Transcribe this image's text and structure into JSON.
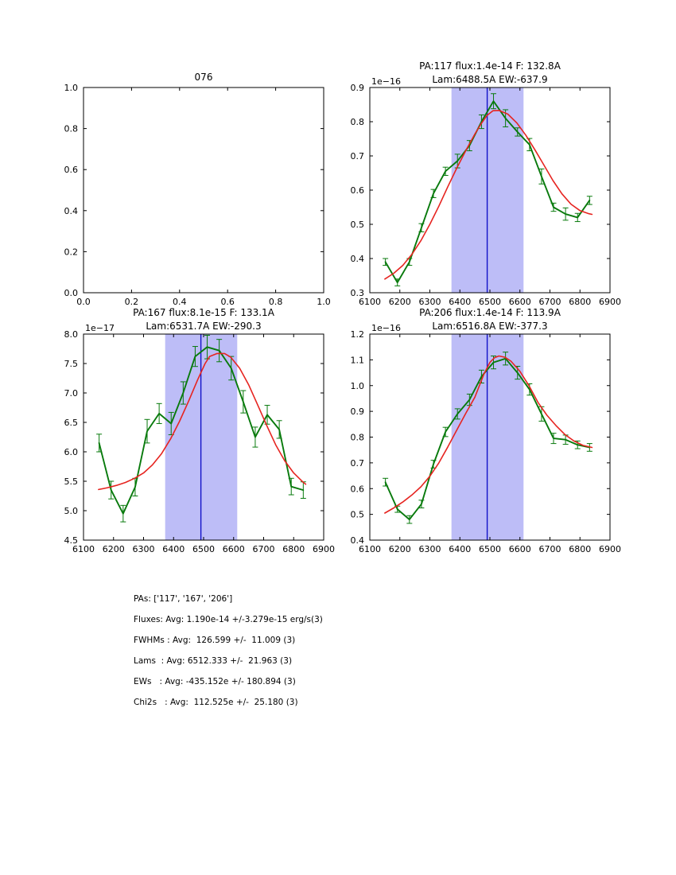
{
  "colors": {
    "data_series": "#087a0c",
    "fit_curve": "#e62420",
    "center_line": "#1111c9",
    "band_fill": "#bdbdf7",
    "axes": "#000000",
    "background": "#ffffff"
  },
  "chart_data": [
    {
      "id": "subplot-empty-076",
      "type": "line",
      "title_lines": [
        "076"
      ],
      "xlim": [
        0.0,
        1.0
      ],
      "ylim": [
        0.0,
        1.0
      ],
      "xtick_labels": [
        "0.0",
        "0.2",
        "0.4",
        "0.6",
        "0.8",
        "1.0"
      ],
      "ytick_labels": [
        "0.0",
        "0.2",
        "0.4",
        "0.6",
        "0.8",
        "1.0"
      ],
      "y_offset_label": null,
      "band": null,
      "vline": null,
      "grid": false,
      "series": []
    },
    {
      "id": "subplot-pa117",
      "type": "line",
      "title_lines": [
        "PA:117 flux:1.4e-14 F: 132.8A",
        "Lam:6488.5A EW:-637.9"
      ],
      "xlim": [
        6100,
        6900
      ],
      "ylim": [
        0.3,
        0.9
      ],
      "xtick_labels": [
        "6100",
        "6200",
        "6300",
        "6400",
        "6500",
        "6600",
        "6700",
        "6800",
        "6900"
      ],
      "ytick_labels": [
        "0.3",
        "0.4",
        "0.5",
        "0.6",
        "0.7",
        "0.8",
        "0.9"
      ],
      "y_offset_label": "1e−16",
      "band": [
        6372,
        6612
      ],
      "vline": 6491,
      "grid": false,
      "series": [
        {
          "name": "spectrum-data",
          "role": "data",
          "x": [
            6152,
            6192,
            6232,
            6272,
            6312,
            6352,
            6392,
            6432,
            6472,
            6512,
            6552,
            6592,
            6632,
            6672,
            6712,
            6752,
            6792,
            6832
          ],
          "y": [
            0.39,
            0.33,
            0.39,
            0.49,
            0.59,
            0.655,
            0.685,
            0.73,
            0.8,
            0.86,
            0.81,
            0.77,
            0.733,
            0.64,
            0.55,
            0.53,
            0.52,
            0.57
          ],
          "err": [
            0.01,
            0.01,
            0.01,
            0.012,
            0.012,
            0.012,
            0.02,
            0.015,
            0.02,
            0.022,
            0.025,
            0.012,
            0.018,
            0.022,
            0.012,
            0.018,
            0.012,
            0.012
          ]
        },
        {
          "name": "gaussian-fit",
          "role": "fit",
          "x": [
            6150,
            6180,
            6210,
            6240,
            6270,
            6300,
            6330,
            6360,
            6390,
            6420,
            6450,
            6470,
            6490,
            6510,
            6530,
            6560,
            6590,
            6620,
            6650,
            6680,
            6710,
            6740,
            6770,
            6800,
            6830,
            6840
          ],
          "y": [
            0.34,
            0.357,
            0.38,
            0.412,
            0.452,
            0.5,
            0.553,
            0.61,
            0.665,
            0.716,
            0.764,
            0.793,
            0.818,
            0.832,
            0.833,
            0.822,
            0.796,
            0.76,
            0.718,
            0.673,
            0.628,
            0.589,
            0.559,
            0.54,
            0.531,
            0.529
          ]
        }
      ]
    },
    {
      "id": "subplot-pa167",
      "type": "line",
      "title_lines": [
        "PA:167 flux:8.1e-15 F: 133.1A",
        "Lam:6531.7A EW:-290.3"
      ],
      "xlim": [
        6100,
        6900
      ],
      "ylim": [
        4.5,
        8.0
      ],
      "xtick_labels": [
        "6100",
        "6200",
        "6300",
        "6400",
        "6500",
        "6600",
        "6700",
        "6800",
        "6900"
      ],
      "ytick_labels": [
        "4.5",
        "5.0",
        "5.5",
        "6.0",
        "6.5",
        "7.0",
        "7.5",
        "8.0"
      ],
      "y_offset_label": "1e−17",
      "band": [
        6372,
        6612
      ],
      "vline": 6491,
      "grid": false,
      "series": [
        {
          "name": "spectrum-data",
          "role": "data",
          "x": [
            6152,
            6192,
            6232,
            6272,
            6312,
            6352,
            6392,
            6432,
            6472,
            6512,
            6552,
            6592,
            6632,
            6672,
            6712,
            6752,
            6792,
            6832
          ],
          "y": [
            6.15,
            5.35,
            4.95,
            5.4,
            6.35,
            6.65,
            6.48,
            7.0,
            7.62,
            7.78,
            7.72,
            7.42,
            6.85,
            6.25,
            6.63,
            6.38,
            5.41,
            5.35
          ],
          "err": [
            0.15,
            0.15,
            0.14,
            0.15,
            0.2,
            0.17,
            0.19,
            0.19,
            0.17,
            0.2,
            0.19,
            0.2,
            0.19,
            0.17,
            0.16,
            0.15,
            0.14,
            0.14
          ]
        },
        {
          "name": "gaussian-fit",
          "role": "fit",
          "x": [
            6150,
            6180,
            6210,
            6240,
            6270,
            6300,
            6330,
            6360,
            6390,
            6420,
            6450,
            6480,
            6505,
            6520,
            6545,
            6570,
            6590,
            6620,
            6650,
            6680,
            6710,
            6740,
            6770,
            6800,
            6830,
            6840
          ],
          "y": [
            5.36,
            5.39,
            5.43,
            5.48,
            5.55,
            5.64,
            5.78,
            5.97,
            6.22,
            6.52,
            6.86,
            7.22,
            7.5,
            7.62,
            7.67,
            7.67,
            7.61,
            7.42,
            7.14,
            6.8,
            6.45,
            6.12,
            5.85,
            5.64,
            5.49,
            5.45
          ]
        }
      ]
    },
    {
      "id": "subplot-pa206",
      "type": "line",
      "title_lines": [
        "PA:206 flux:1.4e-14 F: 113.9A",
        "Lam:6516.8A EW:-377.3"
      ],
      "xlim": [
        6100,
        6900
      ],
      "ylim": [
        0.4,
        1.2
      ],
      "xtick_labels": [
        "6100",
        "6200",
        "6300",
        "6400",
        "6500",
        "6600",
        "6700",
        "6800",
        "6900"
      ],
      "ytick_labels": [
        "0.4",
        "0.5",
        "0.6",
        "0.7",
        "0.8",
        "0.9",
        "1.0",
        "1.1",
        "1.2"
      ],
      "y_offset_label": "1e−16",
      "band": [
        6372,
        6612
      ],
      "vline": 6491,
      "grid": false,
      "series": [
        {
          "name": "spectrum-data",
          "role": "data",
          "x": [
            6152,
            6192,
            6232,
            6272,
            6312,
            6352,
            6392,
            6432,
            6472,
            6512,
            6552,
            6592,
            6632,
            6672,
            6712,
            6752,
            6792,
            6832
          ],
          "y": [
            0.625,
            0.52,
            0.48,
            0.54,
            0.695,
            0.82,
            0.89,
            0.945,
            1.035,
            1.09,
            1.105,
            1.05,
            0.985,
            0.89,
            0.795,
            0.79,
            0.77,
            0.76
          ],
          "err": [
            0.015,
            0.012,
            0.015,
            0.015,
            0.015,
            0.018,
            0.02,
            0.022,
            0.025,
            0.025,
            0.025,
            0.025,
            0.022,
            0.028,
            0.02,
            0.018,
            0.015,
            0.015
          ]
        },
        {
          "name": "gaussian-fit",
          "role": "fit",
          "x": [
            6150,
            6180,
            6210,
            6240,
            6270,
            6300,
            6330,
            6360,
            6390,
            6420,
            6450,
            6480,
            6500,
            6515,
            6530,
            6550,
            6570,
            6600,
            6630,
            6660,
            6690,
            6720,
            6750,
            6780,
            6810,
            6840
          ],
          "y": [
            0.505,
            0.525,
            0.548,
            0.575,
            0.607,
            0.648,
            0.7,
            0.762,
            0.828,
            0.893,
            0.955,
            1.045,
            1.09,
            1.108,
            1.115,
            1.11,
            1.095,
            1.055,
            1.0,
            0.935,
            0.885,
            0.845,
            0.81,
            0.785,
            0.768,
            0.76
          ]
        }
      ]
    }
  ],
  "summary": {
    "lines": [
      "PAs: ['117', '167', '206']",
      "Fluxes: Avg: 1.190e-14 +/-3.279e-15 erg/s(3)",
      "FWHMs : Avg:  126.599 +/-  11.009 (3)",
      "Lams  : Avg: 6512.333 +/-  21.963 (3)",
      "EWs   : Avg: -435.152e +/- 180.894 (3)",
      "Chi2s   : Avg:  112.525e +/-  25.180 (3)"
    ]
  }
}
